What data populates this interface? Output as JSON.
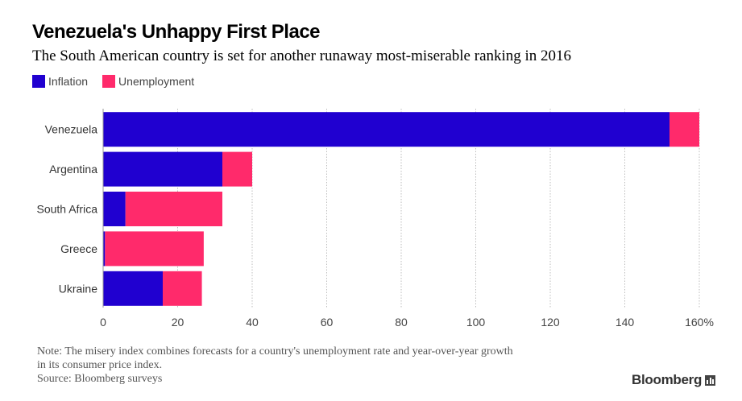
{
  "title": "Venezuela's Unhappy First Place",
  "subtitle": "The South American country is set for another runaway most-miserable ranking in 2016",
  "legend": {
    "inflation": "Inflation",
    "unemployment": "Unemployment"
  },
  "colors": {
    "inflation": "#2000d0",
    "unemployment": "#ff2a6b"
  },
  "note": {
    "line1": "Note: The misery index combines forecasts for a country's unemployment rate and year-over-year growth",
    "line2": "in its consumer price index.",
    "source": "Source: Bloomberg surveys"
  },
  "brand": "Bloomberg",
  "chart_data": {
    "type": "bar",
    "orientation": "horizontal",
    "stacked": true,
    "categories": [
      "Venezuela",
      "Argentina",
      "South Africa",
      "Greece",
      "Ukraine"
    ],
    "series": [
      {
        "name": "Inflation",
        "values": [
          152,
          32,
          6,
          0.5,
          16
        ]
      },
      {
        "name": "Unemployment",
        "values": [
          8,
          8,
          26,
          26.5,
          10.5
        ]
      }
    ],
    "xlim": [
      0,
      160
    ],
    "xticks": [
      "0",
      "20",
      "40",
      "60",
      "80",
      "100",
      "120",
      "140",
      "160%"
    ],
    "grid": "vertical",
    "legend_position": "top-left"
  }
}
